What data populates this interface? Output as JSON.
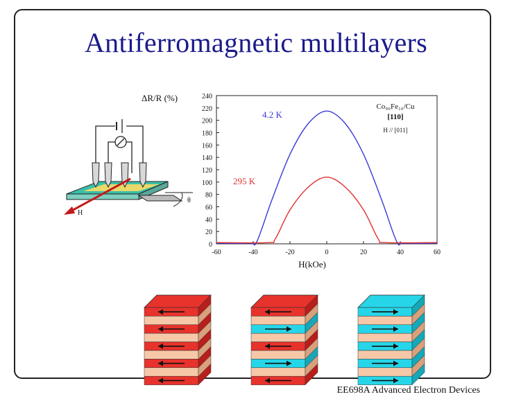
{
  "slide": {
    "title": "Antiferromagnetic multilayers",
    "footer": "EE698A  Advanced Electron Devices"
  },
  "setup_diagram": {
    "labels": {
      "field": "H",
      "angle": "θ"
    }
  },
  "chart_data": {
    "type": "line",
    "ylabel": "ΔR/R (%)",
    "xlabel": "H(kOe)",
    "xlim": [
      -60,
      60
    ],
    "ylim": [
      0,
      240
    ],
    "xticks": [
      -60,
      -40,
      -20,
      0,
      20,
      40,
      60
    ],
    "yticks": [
      0,
      20,
      40,
      60,
      80,
      100,
      120,
      140,
      160,
      180,
      200,
      220,
      240
    ],
    "legend_box": [
      "Co₉₀Fe₁₀/Cu",
      "[110]",
      "H // [011]"
    ],
    "series": [
      {
        "name": "4.2 K",
        "color": "#3a3ad8",
        "x": [
          -60,
          -42,
          -38,
          -30,
          -20,
          -10,
          0,
          10,
          20,
          30,
          38,
          42,
          60
        ],
        "y": [
          1,
          1,
          4,
          70,
          145,
          195,
          215,
          195,
          145,
          70,
          4,
          1,
          1
        ]
      },
      {
        "name": "295 K",
        "color": "#e03030",
        "x": [
          -60,
          -32,
          -28,
          -20,
          -10,
          0,
          10,
          20,
          28,
          32,
          60
        ],
        "y": [
          2,
          2,
          8,
          55,
          92,
          108,
          92,
          55,
          8,
          2,
          2
        ]
      }
    ]
  },
  "stacks": [
    {
      "id": "stack-left",
      "layers": [
        "red",
        "peach",
        "red",
        "peach",
        "red",
        "peach",
        "red",
        "peach",
        "red"
      ],
      "arrows": [
        "left",
        "left",
        "left",
        "left",
        "left"
      ]
    },
    {
      "id": "stack-middle",
      "layers": [
        "red",
        "peach",
        "cyan",
        "peach",
        "red",
        "peach",
        "cyan",
        "peach",
        "red"
      ],
      "arrows": [
        "left",
        "right",
        "left",
        "right",
        "left"
      ]
    },
    {
      "id": "stack-right",
      "layers": [
        "cyan",
        "peach",
        "cyan",
        "peach",
        "cyan",
        "peach",
        "cyan",
        "peach",
        "cyan"
      ],
      "arrows": [
        "right",
        "right",
        "right",
        "right",
        "right"
      ]
    }
  ],
  "colors": {
    "red": "#e8322c",
    "peach": "#f6c8a8",
    "cyan": "#26d6e8",
    "title": "#1a1a8c"
  }
}
